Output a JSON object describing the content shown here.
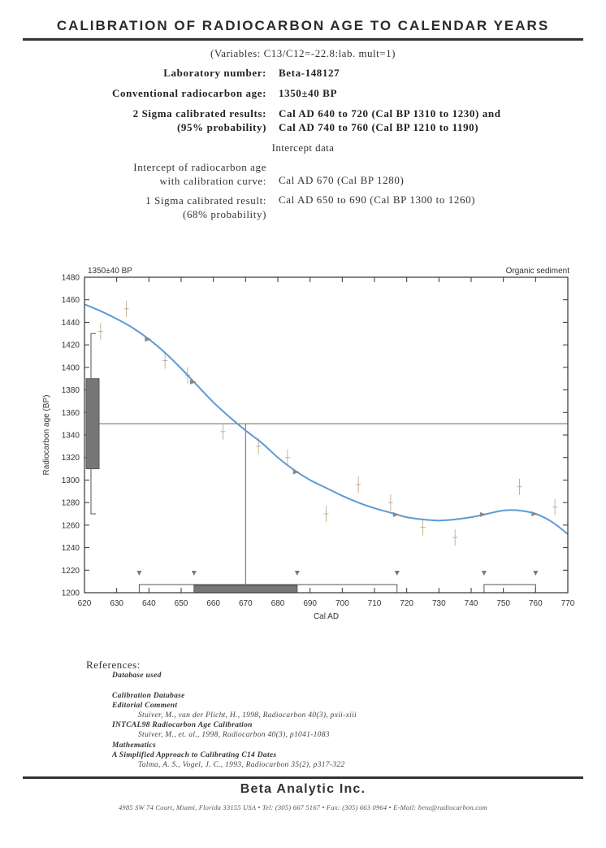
{
  "header": {
    "title": "CALIBRATION OF RADIOCARBON AGE TO CALENDAR YEARS",
    "variables": "(Variables: C13/C12=-22.8:lab. mult=1)"
  },
  "results": {
    "lab_number_label": "Laboratory number:",
    "lab_number_value": "Beta-148127",
    "conv_age_label": "Conventional radiocarbon age:",
    "conv_age_value": "1350±40 BP",
    "sigma2_label_1": "2 Sigma calibrated results:",
    "sigma2_label_2": "(95% probability)",
    "sigma2_value_1": "Cal AD 640 to 720 (Cal BP 1310 to 1230) and",
    "sigma2_value_2": "Cal AD 740 to 760 (Cal BP 1210 to 1190)",
    "intercept_heading": "Intercept data",
    "intercept_label_1": "Intercept of radiocarbon age",
    "intercept_label_2": "with calibration curve:",
    "intercept_value": "Cal AD 670 (Cal BP 1280)",
    "sigma1_label_1": "1 Sigma calibrated result:",
    "sigma1_label_2": "(68% probability)",
    "sigma1_value": "Cal AD 650 to 690 (Cal BP 1300 to 1260)"
  },
  "chart_data": {
    "type": "line",
    "title": "",
    "corner_left": "1350±40 BP",
    "corner_right": "Organic sediment",
    "xlabel": "Cal AD",
    "ylabel": "Radiocarbon age (BP)",
    "xlim": [
      620,
      770
    ],
    "ylim": [
      1200,
      1480
    ],
    "xticks": [
      620,
      630,
      640,
      650,
      660,
      670,
      680,
      690,
      700,
      710,
      720,
      730,
      740,
      750,
      760,
      770
    ],
    "yticks": [
      1200,
      1220,
      1240,
      1260,
      1280,
      1300,
      1320,
      1340,
      1360,
      1380,
      1400,
      1420,
      1440,
      1460,
      1480
    ],
    "curve_color": "#5b9bd5",
    "calibration_curve": {
      "x": [
        620,
        625,
        630,
        635,
        640,
        645,
        650,
        655,
        660,
        665,
        670,
        675,
        680,
        685,
        690,
        695,
        700,
        705,
        710,
        715,
        720,
        725,
        730,
        735,
        740,
        745,
        750,
        755,
        760,
        765,
        770
      ],
      "y": [
        1456,
        1450,
        1443,
        1435,
        1425,
        1413,
        1399,
        1384,
        1369,
        1356,
        1344,
        1333,
        1320,
        1309,
        1300,
        1293,
        1286,
        1280,
        1275,
        1271,
        1267,
        1265,
        1264,
        1265,
        1267,
        1270,
        1273,
        1273,
        1270,
        1263,
        1252
      ]
    },
    "measured_age": 1350,
    "sigma1_age_range": [
      1310,
      1390
    ],
    "sigma2_age_range": [
      1270,
      1430
    ],
    "intercept_x": 670,
    "sigma1_ranges": [
      [
        654,
        686
      ]
    ],
    "sigma2_ranges": [
      [
        637,
        717
      ],
      [
        744,
        760
      ]
    ],
    "data_points": {
      "x": [
        625,
        633,
        645,
        652,
        663,
        674,
        683,
        695,
        705,
        715,
        725,
        735,
        755,
        766
      ],
      "y": [
        1432,
        1452,
        1406,
        1393,
        1343,
        1330,
        1320,
        1270,
        1296,
        1280,
        1258,
        1249,
        1294,
        1276
      ]
    }
  },
  "references": {
    "heading": "References:",
    "db_used": "Database used",
    "cal_db": "Calibration Database",
    "ed_comment": "Editorial Comment",
    "ed_cite": "Stuiver, M., van der Plicht, H., 1998, Radiocarbon 40(3), pxii-xiii",
    "intcal": "INTCAL98 Radiocarbon Age Calibration",
    "intcal_cite": "Stuiver, M., et. al., 1998, Radiocarbon 40(3), p1041-1083",
    "math": "Mathematics",
    "math_title": "A Simplified Approach to Calibrating C14 Dates",
    "math_cite": "Talma, A. S., Vogel, J. C., 1993, Radiocarbon 35(2), p317-322"
  },
  "footer": {
    "company": "Beta Analytic Inc.",
    "address": "4985 SW 74 Court, Miami, Florida 33155 USA • Tel: (305) 667 5167 • Fax: (305) 663 0964 • E-Mail: beta@radiocarbon.com"
  }
}
